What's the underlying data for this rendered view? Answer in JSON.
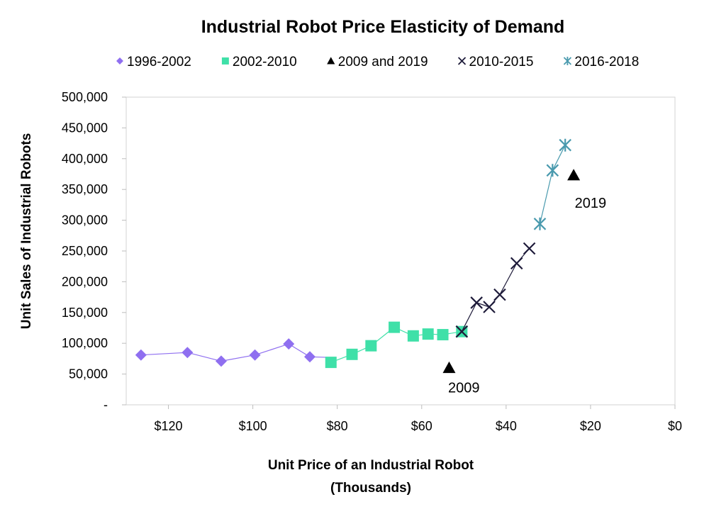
{
  "chart_data": {
    "type": "scatter",
    "title": "Industrial Robot Price Elasticity of Demand",
    "xlabel_line1": "Unit Price of an Industrial Robot",
    "xlabel_line2": "(Thousands)",
    "ylabel": "Unit Sales of Industrial Robots",
    "x_reversed": true,
    "xlim": [
      0,
      130
    ],
    "ylim": [
      0,
      500000
    ],
    "x_ticks": [
      120,
      100,
      80,
      60,
      40,
      20,
      0
    ],
    "x_tick_labels": [
      "$120",
      "$100",
      "$80",
      "$60",
      "$40",
      "$20",
      "$0"
    ],
    "y_ticks": [
      0,
      50000,
      100000,
      150000,
      200000,
      250000,
      300000,
      350000,
      400000,
      450000,
      500000
    ],
    "y_tick_labels": [
      "-",
      "50,000",
      "100,000",
      "150,000",
      "200,000",
      "250,000",
      "300,000",
      "350,000",
      "400,000",
      "450,000",
      "500,000"
    ],
    "legend_position": "top",
    "series": [
      {
        "name": "1996-2002",
        "marker": "diamond",
        "color": "#8f6ff0",
        "connected": true,
        "points": [
          [
            126.5,
            81000
          ],
          [
            115.5,
            85000
          ],
          [
            107.5,
            71000
          ],
          [
            99.5,
            81000
          ],
          [
            91.5,
            99000
          ],
          [
            86.5,
            78000
          ]
        ],
        "line_end": [
          81.5,
          77000
        ]
      },
      {
        "name": "2002-2010",
        "marker": "square",
        "color": "#3fe0a8",
        "connected": true,
        "points": [
          [
            81.5,
            69000
          ],
          [
            76.5,
            82000
          ],
          [
            72,
            96000
          ],
          [
            66.5,
            126000
          ],
          [
            62,
            112000
          ],
          [
            58.5,
            115000
          ],
          [
            55,
            114000
          ],
          [
            50.5,
            119000
          ]
        ]
      },
      {
        "name": "2009 and 2019",
        "marker": "triangle",
        "color": "#000000",
        "connected": false,
        "points": [
          [
            53.5,
            60000
          ],
          [
            24,
            373000
          ]
        ]
      },
      {
        "name": "2010-2015",
        "marker": "x",
        "color": "#1e1b3a",
        "connected": true,
        "points": [
          [
            50.5,
            119000
          ],
          [
            47,
            166000
          ],
          [
            44,
            159000
          ],
          [
            41.5,
            179000
          ],
          [
            37.5,
            230000
          ],
          [
            34.5,
            254000
          ]
        ]
      },
      {
        "name": "2016-2018",
        "marker": "asterisk",
        "color": "#4a9aae",
        "connected": true,
        "points": [
          [
            32,
            294000
          ],
          [
            29,
            381000
          ],
          [
            26,
            422000
          ]
        ]
      }
    ],
    "annotations": [
      {
        "text": "2009",
        "x": 50,
        "y": 20000
      },
      {
        "text": "2019",
        "x": 20,
        "y": 320000
      }
    ]
  }
}
